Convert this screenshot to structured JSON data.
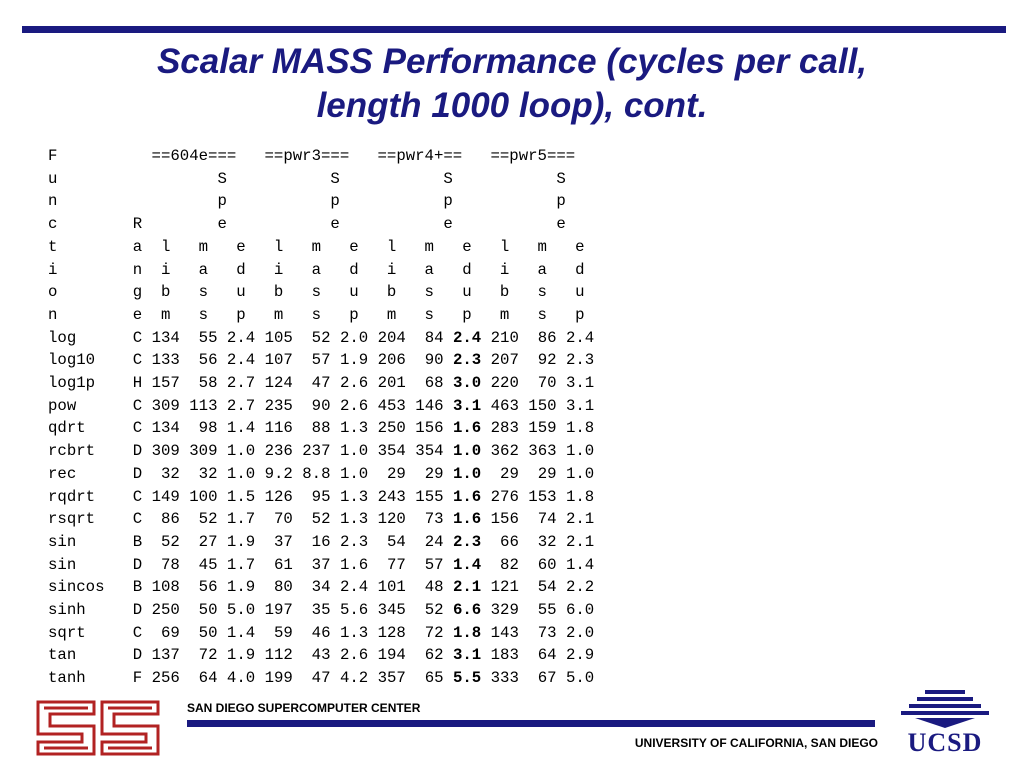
{
  "slide": {
    "title_line1": "Scalar MASS Performance (cycles per call,",
    "title_line2": "length 1000 loop), cont.",
    "colors": {
      "accent": "#1a1a80",
      "logo_red": "#b22222"
    }
  },
  "table": {
    "header_lines": [
      "F          ==604e===   ==pwr3===   ==pwr4+==   ==pwr5===",
      "u                 S           S           S           S",
      "n                 p           p           p           p",
      "c        R        e           e           e           e",
      "t        a  l   m   e   l   m   e   l   m   e   l   m   e",
      "i        n  i   a   d   i   a   d   i   a   d   i   a   d",
      "o        g  b   s   u   b   s   u   b   s   u   b   s   u",
      "n        e  m   s   p   m   s   p   m   s   p   m   s   p"
    ],
    "rows": [
      {
        "func": "log",
        "range": "C",
        "c1": "134",
        "c2": " 55",
        "c3": "2.4",
        "c4": "105",
        "c5": " 52",
        "c6": "2.0",
        "c7": "204",
        "c8": " 84",
        "c9": "2.4",
        "c10": "210",
        "c11": " 86",
        "c12": "2.4"
      },
      {
        "func": "log10",
        "range": "C",
        "c1": "133",
        "c2": " 56",
        "c3": "2.4",
        "c4": "107",
        "c5": " 57",
        "c6": "1.9",
        "c7": "206",
        "c8": " 90",
        "c9": "2.3",
        "c10": "207",
        "c11": " 92",
        "c12": "2.3"
      },
      {
        "func": "log1p",
        "range": "H",
        "c1": "157",
        "c2": " 58",
        "c3": "2.7",
        "c4": "124",
        "c5": " 47",
        "c6": "2.6",
        "c7": "201",
        "c8": " 68",
        "c9": "3.0",
        "c10": "220",
        "c11": " 70",
        "c12": "3.1"
      },
      {
        "func": "pow",
        "range": "C",
        "c1": "309",
        "c2": "113",
        "c3": "2.7",
        "c4": "235",
        "c5": " 90",
        "c6": "2.6",
        "c7": "453",
        "c8": "146",
        "c9": "3.1",
        "c10": "463",
        "c11": "150",
        "c12": "3.1"
      },
      {
        "func": "qdrt",
        "range": "C",
        "c1": "134",
        "c2": " 98",
        "c3": "1.4",
        "c4": "116",
        "c5": " 88",
        "c6": "1.3",
        "c7": "250",
        "c8": "156",
        "c9": "1.6",
        "c10": "283",
        "c11": "159",
        "c12": "1.8"
      },
      {
        "func": "rcbrt",
        "range": "D",
        "c1": "309",
        "c2": "309",
        "c3": "1.0",
        "c4": "236",
        "c5": "237",
        "c6": "1.0",
        "c7": "354",
        "c8": "354",
        "c9": "1.0",
        "c10": "362",
        "c11": "363",
        "c12": "1.0"
      },
      {
        "func": "rec",
        "range": "D",
        "c1": " 32",
        "c2": " 32",
        "c3": "1.0",
        "c4": "9.2",
        "c5": "8.8",
        "c6": "1.0",
        "c7": " 29",
        "c8": " 29",
        "c9": "1.0",
        "c10": " 29",
        "c11": " 29",
        "c12": "1.0"
      },
      {
        "func": "rqdrt",
        "range": "C",
        "c1": "149",
        "c2": "100",
        "c3": "1.5",
        "c4": "126",
        "c5": " 95",
        "c6": "1.3",
        "c7": "243",
        "c8": "155",
        "c9": "1.6",
        "c10": "276",
        "c11": "153",
        "c12": "1.8"
      },
      {
        "func": "rsqrt",
        "range": "C",
        "c1": " 86",
        "c2": " 52",
        "c3": "1.7",
        "c4": " 70",
        "c5": " 52",
        "c6": "1.3",
        "c7": "120",
        "c8": " 73",
        "c9": "1.6",
        "c10": "156",
        "c11": " 74",
        "c12": "2.1"
      },
      {
        "func": "sin",
        "range": "B",
        "c1": " 52",
        "c2": " 27",
        "c3": "1.9",
        "c4": " 37",
        "c5": " 16",
        "c6": "2.3",
        "c7": " 54",
        "c8": " 24",
        "c9": "2.3",
        "c10": " 66",
        "c11": " 32",
        "c12": "2.1"
      },
      {
        "func": "sin",
        "range": "D",
        "c1": " 78",
        "c2": " 45",
        "c3": "1.7",
        "c4": " 61",
        "c5": " 37",
        "c6": "1.6",
        "c7": " 77",
        "c8": " 57",
        "c9": "1.4",
        "c10": " 82",
        "c11": " 60",
        "c12": "1.4"
      },
      {
        "func": "sincos",
        "range": "B",
        "c1": "108",
        "c2": " 56",
        "c3": "1.9",
        "c4": " 80",
        "c5": " 34",
        "c6": "2.4",
        "c7": "101",
        "c8": " 48",
        "c9": "2.1",
        "c10": "121",
        "c11": " 54",
        "c12": "2.2"
      },
      {
        "func": "sinh",
        "range": "D",
        "c1": "250",
        "c2": " 50",
        "c3": "5.0",
        "c4": "197",
        "c5": " 35",
        "c6": "5.6",
        "c7": "345",
        "c8": " 52",
        "c9": "6.6",
        "c10": "329",
        "c11": " 55",
        "c12": "6.0"
      },
      {
        "func": "sqrt",
        "range": "C",
        "c1": " 69",
        "c2": " 50",
        "c3": "1.4",
        "c4": " 59",
        "c5": " 46",
        "c6": "1.3",
        "c7": "128",
        "c8": " 72",
        "c9": "1.8",
        "c10": "143",
        "c11": " 73",
        "c12": "2.0"
      },
      {
        "func": "tan",
        "range": "D",
        "c1": "137",
        "c2": " 72",
        "c3": "1.9",
        "c4": "112",
        "c5": " 43",
        "c6": "2.6",
        "c7": "194",
        "c8": " 62",
        "c9": "3.1",
        "c10": "183",
        "c11": " 64",
        "c12": "2.9"
      },
      {
        "func": "tanh",
        "range": "F",
        "c1": "256",
        "c2": " 64",
        "c3": "4.0",
        "c4": "199",
        "c5": " 47",
        "c6": "4.2",
        "c7": "357",
        "c8": " 65",
        "c9": "5.5",
        "c10": "333",
        "c11": " 67",
        "c12": "5.0"
      }
    ]
  },
  "footer": {
    "left_org": "SAN DIEGO SUPERCOMPUTER CENTER",
    "right_org": "UNIVERSITY OF CALIFORNIA, SAN DIEGO",
    "ucsd_logo_text": "UCSD"
  }
}
